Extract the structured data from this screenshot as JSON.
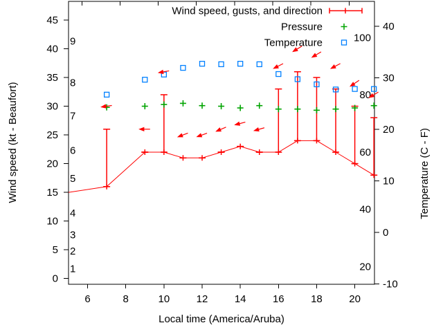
{
  "chart_data": {
    "type": "line",
    "title": "",
    "background": "#ffffff",
    "colors": {
      "wind": "#ff0000",
      "pressure": "#00a400",
      "temperature": "#0080ff",
      "axis": "#000000"
    },
    "legend": {
      "position": "top-right-inside",
      "entries": [
        {
          "id": "wind",
          "label": "Wind speed, gusts, and direction",
          "marker": "errorbar-line",
          "color": "#ff0000"
        },
        {
          "id": "pressure",
          "label": "Pressure",
          "marker": "plus",
          "color": "#00a400"
        },
        {
          "id": "temperature",
          "label": "Temperature",
          "marker": "open-square",
          "color": "#0080ff"
        }
      ]
    },
    "axes": {
      "x": {
        "label": "Local time (America/Aruba)",
        "range": [
          5,
          21.03
        ],
        "ticks": [
          6,
          8,
          10,
          12,
          14,
          16,
          18,
          20
        ],
        "top_ticks": [
          5.7,
          7.7,
          9.7,
          11.7,
          13.7,
          15.7,
          17.7,
          19.7
        ]
      },
      "y_left": {
        "label": "Wind speed (kt - Beaufort)",
        "unit": "kt",
        "range": [
          -1,
          48.25
        ],
        "ticks": [
          0,
          5,
          10,
          15,
          20,
          25,
          30,
          35,
          40,
          45
        ],
        "inner_beaufort_labels": [
          {
            "label": "1",
            "kt": 1.7
          },
          {
            "label": "2",
            "kt": 4.8
          },
          {
            "label": "3",
            "kt": 7.6
          },
          {
            "label": "4",
            "kt": 11.4
          },
          {
            "label": "5",
            "kt": 17.4
          },
          {
            "label": "6",
            "kt": 22.3
          },
          {
            "label": "7",
            "kt": 28.3
          },
          {
            "label": "8",
            "kt": 34.1
          },
          {
            "label": "9",
            "kt": 41.3
          }
        ]
      },
      "y_right": {
        "label": "Temperature (C - F)",
        "unit": "C",
        "range": [
          -10.1,
          44.8
        ],
        "ticks": [
          -10,
          0,
          10,
          20,
          30,
          40
        ],
        "inner_fahrenheit_labels": [
          {
            "label": "20",
            "f": 20
          },
          {
            "label": "40",
            "f": 40
          },
          {
            "label": "60",
            "f": 60
          },
          {
            "label": "80",
            "f": 80
          },
          {
            "label": "100",
            "f": 100
          }
        ]
      }
    },
    "series": {
      "wind": {
        "name": "Wind speed, gusts, and direction",
        "unit": "kt",
        "points": [
          {
            "t": 5,
            "speed": 15,
            "gust": 15,
            "marker": false
          },
          {
            "t": 7,
            "speed": 16,
            "gust": 26,
            "marker": true
          },
          {
            "t": 9,
            "speed": 22,
            "gust": 22,
            "marker": true
          },
          {
            "t": 10,
            "speed": 22,
            "gust": 32,
            "marker": true
          },
          {
            "t": 11,
            "speed": 21,
            "gust": 21,
            "marker": true
          },
          {
            "t": 12,
            "speed": 21,
            "gust": 21,
            "marker": true
          },
          {
            "t": 13,
            "speed": 22,
            "gust": 22,
            "marker": true
          },
          {
            "t": 14,
            "speed": 23,
            "gust": 23,
            "marker": true
          },
          {
            "t": 15,
            "speed": 22,
            "gust": 22,
            "marker": true
          },
          {
            "t": 16,
            "speed": 22,
            "gust": 33,
            "marker": true
          },
          {
            "t": 17,
            "speed": 24,
            "gust": 36,
            "marker": true
          },
          {
            "t": 18,
            "speed": 24,
            "gust": 35,
            "marker": true
          },
          {
            "t": 19,
            "speed": 22,
            "gust": 33,
            "marker": true
          },
          {
            "t": 20,
            "speed": 20,
            "gust": 30,
            "marker": true
          },
          {
            "t": 21,
            "speed": 18,
            "gust": 28,
            "marker": true
          }
        ]
      },
      "pressure": {
        "name": "Pressure",
        "axis_note": "plotted against left-axis numbers (inHg)",
        "points": [
          {
            "t": 7,
            "v": 29.8
          },
          {
            "t": 9,
            "v": 30.0
          },
          {
            "t": 10,
            "v": 30.3
          },
          {
            "t": 11,
            "v": 30.5
          },
          {
            "t": 12,
            "v": 30.1
          },
          {
            "t": 13,
            "v": 30.0
          },
          {
            "t": 14,
            "v": 29.7
          },
          {
            "t": 15,
            "v": 30.1
          },
          {
            "t": 16,
            "v": 29.5
          },
          {
            "t": 17,
            "v": 29.5
          },
          {
            "t": 18,
            "v": 29.3
          },
          {
            "t": 19,
            "v": 29.5
          },
          {
            "t": 20,
            "v": 29.7
          },
          {
            "t": 21,
            "v": 30.1
          }
        ]
      },
      "temperature": {
        "name": "Temperature",
        "unit": "C",
        "points": [
          {
            "t": 7,
            "c": 26.7
          },
          {
            "t": 9,
            "c": 29.6
          },
          {
            "t": 10,
            "c": 30.6
          },
          {
            "t": 11,
            "c": 31.9
          },
          {
            "t": 12,
            "c": 32.7
          },
          {
            "t": 13,
            "c": 32.6
          },
          {
            "t": 14,
            "c": 32.7
          },
          {
            "t": 15,
            "c": 32.6
          },
          {
            "t": 16,
            "c": 30.7
          },
          {
            "t": 17,
            "c": 29.7
          },
          {
            "t": 18,
            "c": 28.7
          },
          {
            "t": 19,
            "c": 27.7
          },
          {
            "t": 20,
            "c": 27.8
          },
          {
            "t": 21,
            "c": 27.8
          }
        ]
      },
      "wind_direction_arrows": {
        "note": "arrow tail-to-head screen angle, degrees clockwise from east, plotted 4 kt above gust",
        "points": [
          {
            "t": 7,
            "level_kt": 30,
            "angle_deg": 172
          },
          {
            "t": 9,
            "level_kt": 26,
            "angle_deg": 180
          },
          {
            "t": 10,
            "level_kt": 36,
            "angle_deg": 170
          },
          {
            "t": 11,
            "level_kt": 25,
            "angle_deg": 159
          },
          {
            "t": 12,
            "level_kt": 25,
            "angle_deg": 160
          },
          {
            "t": 13,
            "level_kt": 26,
            "angle_deg": 157
          },
          {
            "t": 14,
            "level_kt": 27,
            "angle_deg": 165
          },
          {
            "t": 15,
            "level_kt": 26,
            "angle_deg": 164
          },
          {
            "t": 16,
            "level_kt": 37,
            "angle_deg": 153
          },
          {
            "t": 17,
            "level_kt": 40,
            "angle_deg": 149
          },
          {
            "t": 18,
            "level_kt": 39,
            "angle_deg": 149
          },
          {
            "t": 19,
            "level_kt": 37,
            "angle_deg": 152
          },
          {
            "t": 20,
            "level_kt": 34,
            "angle_deg": 146
          },
          {
            "t": 21,
            "level_kt": 32,
            "angle_deg": 149
          }
        ]
      }
    }
  }
}
